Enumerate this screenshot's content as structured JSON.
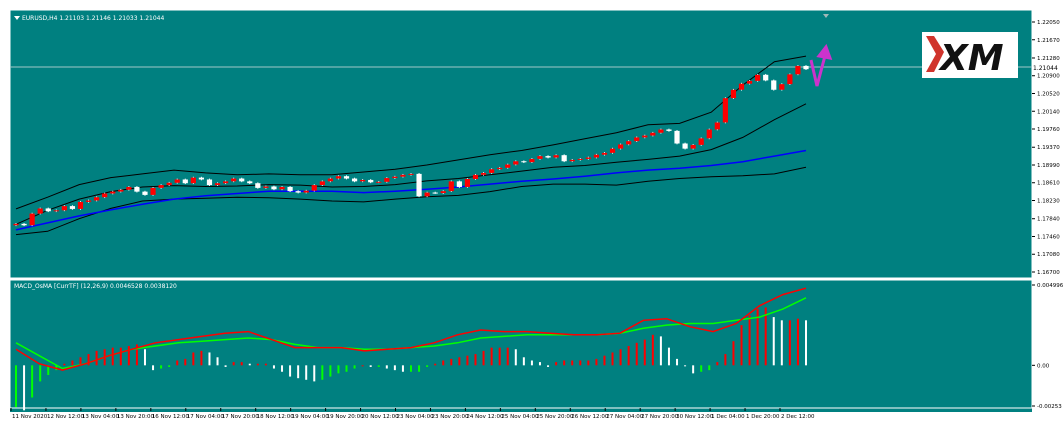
{
  "colors": {
    "background": "#008080",
    "frame": "#ffffff",
    "bull_candle": "#ff0000",
    "bear_candle": "#ffffff",
    "ma_line": "#0000ff",
    "bands": "#000000",
    "macd_line": "#ff0000",
    "signal_line": "#00ff00",
    "hist_up": "#ff0000",
    "hist_down": "#ffffff",
    "hist_green": "#00ff00",
    "arrow": "#cc33cc",
    "logo_red": "#d0342c"
  },
  "logo": {
    "text": "XM"
  },
  "chart_data": [
    {
      "type": "candlestick",
      "title": "EURUSD,H4  1.21103 1.21146 1.21033 1.21044",
      "current_price_label": "1.21044",
      "ylim": [
        1.167,
        1.2205
      ],
      "y_ticks": [
        "1.22050",
        "1.21670",
        "1.21280",
        "1.20900",
        "1.20520",
        "1.20140",
        "1.19760",
        "1.19370",
        "1.18990",
        "1.18610",
        "1.18230",
        "1.17840",
        "1.17460",
        "1.17080",
        "1.16700"
      ],
      "x_tick_labels": [
        "11 Nov 2020",
        "12 Nov 12:00",
        "13 Nov 04:00",
        "13 Nov 20:00",
        "16 Nov 12:00",
        "17 Nov 04:00",
        "17 Nov 20:00",
        "18 Nov 12:00",
        "19 Nov 04:00",
        "19 Nov 20:00",
        "20 Nov 12:00",
        "23 Nov 04:00",
        "23 Nov 20:00",
        "24 Nov 12:00",
        "25 Nov 04:00",
        "25 Nov 20:00",
        "26 Nov 12:00",
        "27 Nov 04:00",
        "27 Nov 20:00",
        "30 Nov 12:00",
        "1 Dec 04:00",
        "1 Dec 20:00",
        "2 Dec 12:00"
      ],
      "series": [
        {
          "name": "close",
          "values": [
            1.1773,
            1.177,
            1.1795,
            1.1806,
            1.18,
            1.1802,
            1.1811,
            1.1805,
            1.182,
            1.1823,
            1.183,
            1.1838,
            1.1842,
            1.1846,
            1.1852,
            1.1842,
            1.1835,
            1.185,
            1.1856,
            1.1861,
            1.1868,
            1.186,
            1.1872,
            1.1868,
            1.1856,
            1.186,
            1.1864,
            1.187,
            1.1864,
            1.186,
            1.185,
            1.1853,
            1.1847,
            1.1852,
            1.1843,
            1.184,
            1.1844,
            1.1856,
            1.1864,
            1.187,
            1.1875,
            1.187,
            1.1864,
            1.1867,
            1.1862,
            1.1863,
            1.1871,
            1.1874,
            1.1878,
            1.188,
            1.1832,
            1.184,
            1.1839,
            1.1843,
            1.1864,
            1.1852,
            1.1869,
            1.1878,
            1.1882,
            1.189,
            1.1893,
            1.19,
            1.1907,
            1.1905,
            1.1912,
            1.1918,
            1.1915,
            1.192,
            1.1907,
            1.191,
            1.1912,
            1.1915,
            1.1921,
            1.1925,
            1.1934,
            1.1943,
            1.195,
            1.1958,
            1.1962,
            1.1968,
            1.1975,
            1.1972,
            1.1945,
            1.1934,
            1.1942,
            1.1956,
            1.1975,
            1.199,
            1.2042,
            1.206,
            1.2073,
            1.2079,
            1.2092,
            1.208,
            1.206,
            1.2072,
            1.2093,
            1.2111,
            1.2104
          ]
        },
        {
          "name": "middle_band",
          "values": [
            1.1772,
            1.1802,
            1.1826,
            1.1842,
            1.1852,
            1.1855,
            1.1853,
            1.1854,
            1.1857,
            1.1856,
            1.1852,
            1.1853,
            1.1857,
            1.1865,
            1.187,
            1.1878,
            1.1886,
            1.1894,
            1.1898,
            1.1905,
            1.1911,
            1.1918,
            1.1932,
            1.1958,
            1.1996,
            1.203
          ]
        },
        {
          "name": "upper_band",
          "values": [
            1.1805,
            1.183,
            1.1857,
            1.1872,
            1.188,
            1.1888,
            1.1882,
            1.1878,
            1.188,
            1.1878,
            1.1878,
            1.1884,
            1.189,
            1.1899,
            1.191,
            1.1921,
            1.193,
            1.1942,
            1.1955,
            1.1968,
            1.1985,
            1.1988,
            1.2012,
            1.207,
            1.212,
            1.2132
          ]
        },
        {
          "name": "lower_band",
          "values": [
            1.175,
            1.1757,
            1.1784,
            1.1806,
            1.1822,
            1.1826,
            1.1828,
            1.183,
            1.1829,
            1.1826,
            1.1822,
            1.182,
            1.1826,
            1.1831,
            1.1834,
            1.1842,
            1.1853,
            1.1858,
            1.1858,
            1.1856,
            1.1864,
            1.187,
            1.1874,
            1.1876,
            1.188,
            1.1894
          ]
        },
        {
          "name": "moving_average",
          "values": [
            1.176,
            1.1775,
            1.179,
            1.1803,
            1.1815,
            1.1826,
            1.1833,
            1.1838,
            1.1843,
            1.1843,
            1.1843,
            1.184,
            1.1843,
            1.1847,
            1.1852,
            1.1858,
            1.1864,
            1.1869,
            1.1875,
            1.1882,
            1.1888,
            1.1892,
            1.1898,
            1.1906,
            1.1918,
            1.193
          ]
        }
      ]
    },
    {
      "type": "macd",
      "title": "MACD_OsMA [CurrTF] (12,26,9) 0.0046528 0.0038120",
      "ylim": [
        -0.00253,
        0.004996
      ],
      "y_ticks": [
        "0.004996",
        "0.00",
        "-0.00253"
      ],
      "series": [
        {
          "name": "histogram",
          "values": [
            -0.0026,
            -0.0028,
            -0.002,
            -0.001,
            -0.0006,
            -0.0003,
            0.0001,
            0.0003,
            0.0005,
            0.0007,
            0.0009,
            0.001,
            0.0011,
            0.0011,
            0.0012,
            0.0013,
            0.001,
            -0.0003,
            -0.0002,
            -0.0001,
            0.0003,
            0.0004,
            0.0008,
            0.0009,
            0.0008,
            0.0005,
            -0.0001,
            0.0002,
            0.0002,
            0.0001,
            0.0001,
            0.0001,
            -0.0002,
            -0.0004,
            -0.0007,
            -0.0008,
            -0.0009,
            -0.001,
            -0.0009,
            -0.0007,
            -0.0005,
            -0.0004,
            -0.0002,
            0.0,
            -0.0001,
            -0.0001,
            -0.0002,
            -0.0003,
            -0.0004,
            -0.0004,
            -0.0004,
            -0.0001,
            0.0001,
            0.0003,
            0.0004,
            0.0005,
            0.0006,
            0.0007,
            0.0009,
            0.0011,
            0.0011,
            0.0011,
            0.001,
            0.0005,
            0.0003,
            0.0002,
            -0.0001,
            0.0002,
            0.0003,
            0.0003,
            0.0003,
            0.0003,
            0.0004,
            0.0006,
            0.0008,
            0.001,
            0.0012,
            0.0014,
            0.0016,
            0.0019,
            0.0018,
            0.0011,
            0.0004,
            0.0,
            -0.0005,
            -0.0004,
            -0.0003,
            0.0002,
            0.0007,
            0.0015,
            0.0025,
            0.0031,
            0.0035,
            0.0036,
            0.003,
            0.0028,
            0.0028,
            0.0029,
            0.0028
          ]
        },
        {
          "name": "macd_line",
          "values": [
            0.001,
            0.0001,
            -0.0003,
            0.0001,
            0.0006,
            0.001,
            0.0014,
            0.0016,
            0.0018,
            0.002,
            0.0021,
            0.0016,
            0.0011,
            0.0011,
            0.0011,
            0.0009,
            0.001,
            0.0011,
            0.0014,
            0.0019,
            0.0022,
            0.0021,
            0.0021,
            0.002,
            0.0019,
            0.0019,
            0.002,
            0.0028,
            0.0029,
            0.0024,
            0.0021,
            0.0026,
            0.0037,
            0.0044,
            0.0048
          ]
        },
        {
          "name": "signal_line",
          "values": [
            0.0014,
            0.0006,
            -0.0002,
            0.0001,
            0.0006,
            0.001,
            0.0012,
            0.0014,
            0.0015,
            0.0016,
            0.0017,
            0.0016,
            0.0013,
            0.0011,
            0.0011,
            0.001,
            0.001,
            0.0011,
            0.0012,
            0.0014,
            0.0017,
            0.0018,
            0.0019,
            0.0019,
            0.0019,
            0.0019,
            0.002,
            0.0023,
            0.0025,
            0.0026,
            0.0026,
            0.0028,
            0.003,
            0.0035,
            0.0042
          ]
        }
      ]
    }
  ]
}
